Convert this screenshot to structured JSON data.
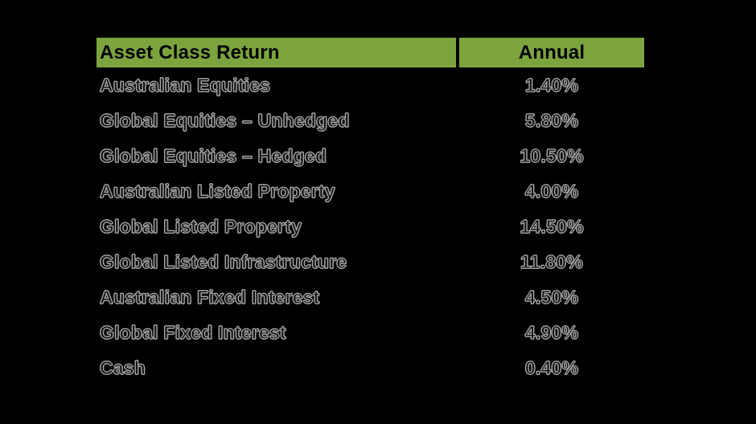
{
  "page": {
    "background_color": "#000000",
    "header_bg_color": "#7ca43e",
    "header_text_color": "#000000"
  },
  "table": {
    "header": [
      {
        "label": "Asset Class Return"
      },
      {
        "label": "Annual"
      }
    ],
    "rows": [
      {
        "label": "Australian Equities",
        "value": "1.40%"
      },
      {
        "label": "Global Equities – Unhedged",
        "value": "5.80%"
      },
      {
        "label": "Global Equities – Hedged",
        "value": "10.50%"
      },
      {
        "label": "Australian Listed Property",
        "value": "4.00%"
      },
      {
        "label": "Global Listed Property",
        "value": "14.50%"
      },
      {
        "label": "Global Listed Infrastructure",
        "value": "11.80%"
      },
      {
        "label": "Australian Fixed Interest",
        "value": "4.50%"
      },
      {
        "label": "Global Fixed Interest",
        "value": "4.90%"
      },
      {
        "label": "Cash",
        "value": "0.40%"
      }
    ]
  },
  "chart_data": {
    "type": "table",
    "title": "Asset Class Return",
    "columns": [
      "Asset Class Return",
      "Annual"
    ],
    "categories": [
      "Australian Equities",
      "Global Equities – Unhedged",
      "Global Equities – Hedged",
      "Australian Listed Property",
      "Global Listed Property",
      "Global Listed Infrastructure",
      "Australian Fixed Interest",
      "Global Fixed Interest",
      "Cash"
    ],
    "values": [
      1.4,
      5.8,
      10.5,
      4.0,
      14.5,
      11.8,
      4.5,
      4.9,
      0.4
    ],
    "value_unit": "%"
  }
}
